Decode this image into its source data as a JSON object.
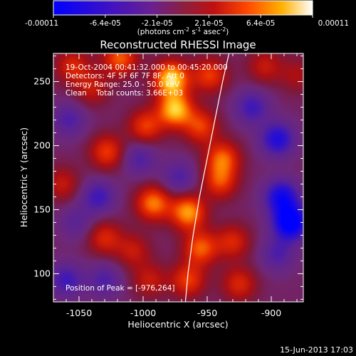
{
  "colorbar": {
    "tick_labels": [
      "-0.00011",
      "-6.4e-05",
      "-2.1e-05",
      "2.1e-05",
      "6.4e-05",
      "0.00011"
    ],
    "unit_label_parts": [
      "(photons cm",
      "-2",
      " s",
      "-1",
      " asec",
      "-2",
      ")"
    ]
  },
  "chart_data": {
    "type": "heatmap",
    "title": "Reconstructed RHESSI Image",
    "xlabel": "Heliocentric X (arcsec)",
    "ylabel": "Heliocentric Y (arcsec)",
    "xlim": [
      -1070,
      -875
    ],
    "ylim": [
      78,
      272
    ],
    "xticks": [
      -1050,
      -1000,
      -950,
      -900
    ],
    "yticks": [
      100,
      150,
      200,
      250
    ],
    "x_tick_labels": [
      "-1050",
      "-1000",
      "-950",
      "-900"
    ],
    "y_tick_labels": [
      "100",
      "150",
      "200",
      "250"
    ],
    "colormap": "red-temperature",
    "value_range": [
      -0.00011,
      0.00011
    ],
    "annotations": [
      "19-Oct-2004 00:41:32.000 to 00:45:20.000",
      "Detectors: 4F 5F 6F 7F 8F, Att 0",
      "Energy Range: 25.0 - 50.0 keV",
      "Clean    Total counts: 3.66E+03"
    ],
    "peak_label": "Position of Peak = [-976,264]",
    "limb_points": [
      [
        -933,
        272
      ],
      [
        -938,
        250
      ],
      [
        -944,
        220
      ],
      [
        -950,
        190
      ],
      [
        -956,
        160
      ],
      [
        -961,
        130
      ],
      [
        -965,
        100
      ],
      [
        -967,
        78
      ]
    ],
    "emission_sources": [
      {
        "x": -1055,
        "y": 262,
        "v": 5e-05
      },
      {
        "x": -1018,
        "y": 268,
        "v": 7e-05
      },
      {
        "x": -978,
        "y": 252,
        "v": 0.00011
      },
      {
        "x": -975,
        "y": 228,
        "v": 0.0001
      },
      {
        "x": -948,
        "y": 255,
        "v": 6e-05
      },
      {
        "x": -905,
        "y": 262,
        "v": 4e-05
      },
      {
        "x": -1040,
        "y": 245,
        "v": 4e-05
      },
      {
        "x": -998,
        "y": 215,
        "v": 6e-05
      },
      {
        "x": -955,
        "y": 215,
        "v": 6e-05
      },
      {
        "x": -1058,
        "y": 220,
        "v": -4e-05
      },
      {
        "x": -1028,
        "y": 195,
        "v": 6e-05
      },
      {
        "x": -1003,
        "y": 190,
        "v": -4e-05
      },
      {
        "x": -938,
        "y": 190,
        "v": 7e-05
      },
      {
        "x": -940,
        "y": 172,
        "v": 6e-05
      },
      {
        "x": -1063,
        "y": 170,
        "v": 4e-05
      },
      {
        "x": -1035,
        "y": 160,
        "v": -5e-05
      },
      {
        "x": -992,
        "y": 155,
        "v": 8e-05
      },
      {
        "x": -965,
        "y": 148,
        "v": 9e-05
      },
      {
        "x": -955,
        "y": 120,
        "v": 7e-05
      },
      {
        "x": -930,
        "y": 125,
        "v": 5e-05
      },
      {
        "x": -1030,
        "y": 128,
        "v": 5e-05
      },
      {
        "x": -1008,
        "y": 118,
        "v": 4e-05
      },
      {
        "x": -1060,
        "y": 95,
        "v": -5e-05
      },
      {
        "x": -1030,
        "y": 95,
        "v": -4e-05
      },
      {
        "x": -995,
        "y": 95,
        "v": 4e-05
      },
      {
        "x": -965,
        "y": 95,
        "v": 6e-05
      },
      {
        "x": -925,
        "y": 92,
        "v": 5e-05
      },
      {
        "x": -895,
        "y": 205,
        "v": -7e-05
      },
      {
        "x": -892,
        "y": 160,
        "v": -8e-05
      },
      {
        "x": -885,
        "y": 140,
        "v": -0.00011
      },
      {
        "x": -895,
        "y": 115,
        "v": -4e-05
      },
      {
        "x": -915,
        "y": 230,
        "v": -5e-05
      },
      {
        "x": -880,
        "y": 255,
        "v": 3e-05
      },
      {
        "x": -1052,
        "y": 140,
        "v": -3e-05
      },
      {
        "x": -972,
        "y": 175,
        "v": -4e-05
      }
    ]
  },
  "footer": {
    "timestamp": "15-Jun-2013 17:03"
  }
}
